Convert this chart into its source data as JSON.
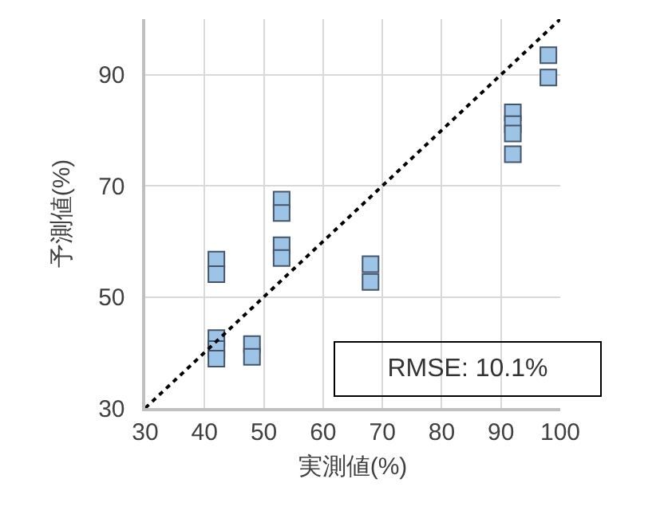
{
  "chart_data": {
    "type": "scatter",
    "xlabel": "実測値(%)",
    "ylabel": "予測値(%)",
    "xlim": [
      30,
      100
    ],
    "xticks": [
      30,
      40,
      50,
      60,
      70,
      80,
      90,
      100
    ],
    "ylim": [
      30,
      100
    ],
    "yticks": [
      30,
      50,
      70,
      90
    ],
    "grid": true,
    "marker": "square",
    "series": [
      {
        "color": "#9dc3e6",
        "x": [
          42,
          42,
          42,
          42,
          42,
          48,
          48,
          53,
          53,
          53,
          53,
          68,
          68,
          92,
          92,
          92,
          92,
          98,
          98
        ],
        "values": [
          56.7,
          54.1,
          42.6,
          40.6,
          38.9,
          41.5,
          39.2,
          67.5,
          65.1,
          59.3,
          57,
          55.9,
          52.7,
          83.2,
          81.1,
          79.4,
          75.7,
          93.5,
          89.5
        ]
      },
      {
        "type": "line",
        "color": "#000000",
        "line_style": "dotted",
        "marker": "none",
        "x": [
          30,
          100
        ],
        "values": [
          30,
          100
        ]
      }
    ],
    "annotations": [
      "RMSE: 10.1%"
    ]
  }
}
